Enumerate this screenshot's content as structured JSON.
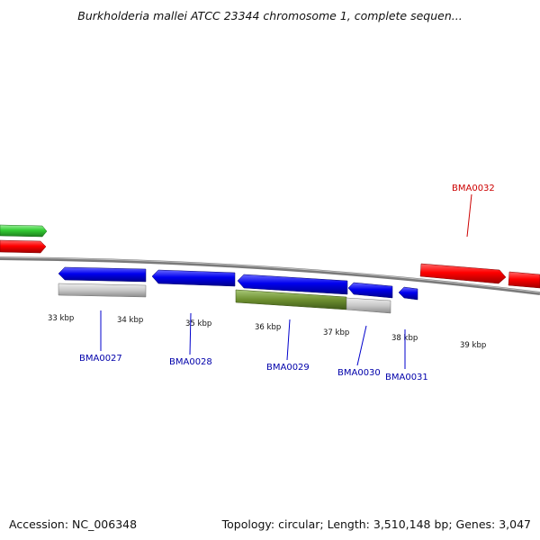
{
  "title": "Burkholderia mallei ATCC 23344 chromosome 1, complete sequen...",
  "accession_text": "Accession: NC_006348",
  "summary_text": "Topology: circular; Length: 3,510,148 bp; Genes: 3,047",
  "colors": {
    "forward_gene": "#ff0000",
    "reverse_gene": "#0000ee",
    "rna_or_other": "#33cc33",
    "reverse_label": "#0000aa",
    "forward_label": "#cc0000",
    "tick": "#007700",
    "backbone": "#888888",
    "cog_gray": "#c8c8c8",
    "cog_olive": "#6e9030"
  },
  "tick_labels": [
    "33 kbp",
    "34 kbp",
    "35 kbp",
    "36 kbp",
    "37 kbp",
    "38 kbp",
    "39 kbp"
  ],
  "gene_labels": [
    {
      "name": "BMA0027",
      "strand": "reverse"
    },
    {
      "name": "BMA0028",
      "strand": "reverse"
    },
    {
      "name": "BMA0029",
      "strand": "reverse"
    },
    {
      "name": "BMA0030",
      "strand": "reverse"
    },
    {
      "name": "BMA0031",
      "strand": "reverse"
    },
    {
      "name": "BMA0032",
      "strand": "forward"
    }
  ]
}
